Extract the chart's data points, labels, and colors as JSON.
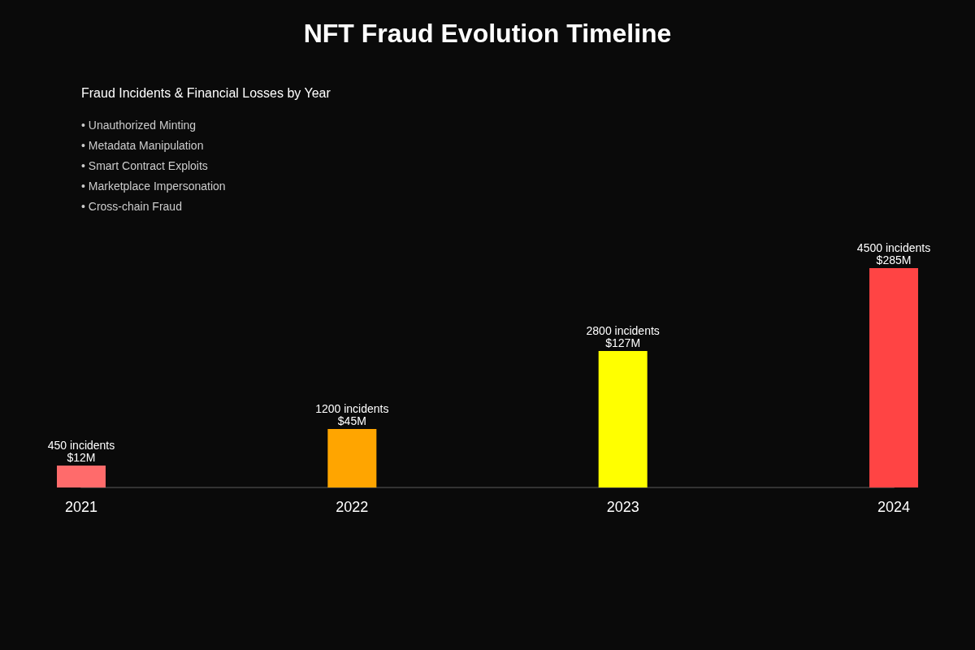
{
  "chart_data": {
    "type": "bar",
    "title": "NFT Fraud Evolution Timeline",
    "subtitle": "Fraud Incidents & Financial Losses by Year",
    "categories": [
      "2021",
      "2022",
      "2023",
      "2024"
    ],
    "values": [
      450,
      1200,
      2800,
      4500
    ],
    "colors": [
      "#ff6b6b",
      "#ffa500",
      "#ffff00",
      "#ff4444"
    ],
    "value_labels": [
      "450 incidents\n$12M",
      "1200 incidents\n$45M",
      "2800 incidents\n$127M",
      "4500 incidents\n$285M"
    ],
    "annotations": [
      "• Unauthorized Minting",
      "• Metadata Manipulation",
      "• Smart Contract Exploits",
      "• Marketplace Impersonation",
      "• Cross-chain Fraud"
    ],
    "grid": false
  }
}
